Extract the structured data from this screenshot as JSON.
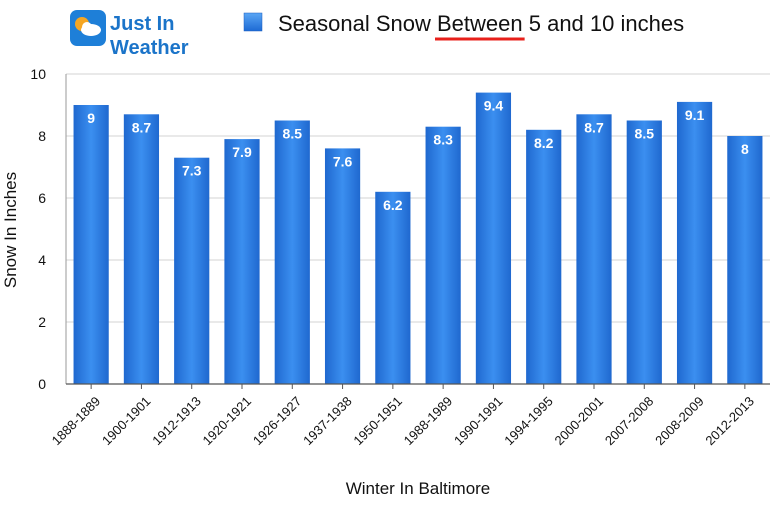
{
  "logo": {
    "line1": "Just In",
    "line2": "Weather",
    "icon": "weather-cloud-sun-icon",
    "colors": {
      "tile": "#1e7fd8",
      "text": "#1b74c9",
      "accent": "#f5a623"
    }
  },
  "legend": {
    "label_before": "Seasonal Snow ",
    "label_underlined": "Between",
    "label_after": " 5 and 10 inches",
    "underline_color": "#e8201b"
  },
  "chart_data": {
    "type": "bar",
    "categories": [
      "1888-1889",
      "1900-1901",
      "1912-1913",
      "1920-1921",
      "1926-1927",
      "1937-1938",
      "1950-1951",
      "1988-1989",
      "1990-1991",
      "1994-1995",
      "2000-2001",
      "2007-2008",
      "2008-2009",
      "2012-2013"
    ],
    "series": [
      {
        "name": "Seasonal Snow Between 5 and 10 inches",
        "values": [
          9,
          8.7,
          7.3,
          7.9,
          8.5,
          7.6,
          6.2,
          8.3,
          9.4,
          8.2,
          8.7,
          8.5,
          9.1,
          8
        ],
        "labels": [
          "9",
          "8.7",
          "7.3",
          "7.9",
          "8.5",
          "7.6",
          "6.2",
          "8.3",
          "9.4",
          "8.2",
          "8.7",
          "8.5",
          "9.1",
          "8"
        ],
        "color": "#2a7ee3"
      }
    ],
    "xlabel": "Winter In Baltimore",
    "ylabel": "Snow In Inches",
    "ylim": [
      0,
      10
    ],
    "yticks": [
      "0",
      "2",
      "4",
      "6",
      "8",
      "10"
    ],
    "grid": true,
    "legend_position": "top"
  }
}
